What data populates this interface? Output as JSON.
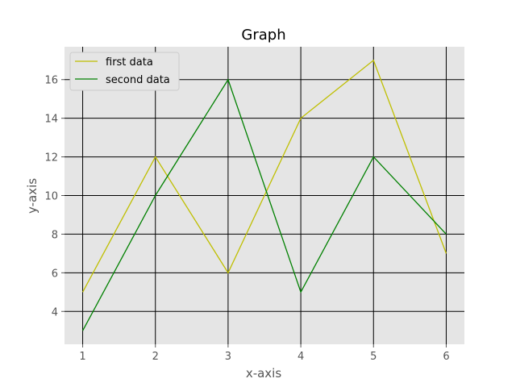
{
  "chart_data": {
    "type": "line",
    "title": "Graph",
    "xlabel": "x-axis",
    "ylabel": "y-axis",
    "x": [
      1,
      2,
      3,
      4,
      5,
      6
    ],
    "xlim": [
      0.75,
      6.25
    ],
    "ylim": [
      2.3,
      17.7
    ],
    "xticks": [
      "1",
      "2",
      "3",
      "4",
      "5",
      "6"
    ],
    "yticks": [
      "4",
      "6",
      "8",
      "10",
      "12",
      "14",
      "16"
    ],
    "grid": true,
    "legend_position": "top-left",
    "background": "#e5e5e5",
    "grid_color": "#000000",
    "series": [
      {
        "name": "first data",
        "color": "#bfbf00",
        "values": [
          5,
          12,
          6,
          14,
          17,
          7
        ]
      },
      {
        "name": "second data",
        "color": "#008000",
        "values": [
          3,
          10,
          16,
          5,
          12,
          8
        ]
      }
    ]
  }
}
